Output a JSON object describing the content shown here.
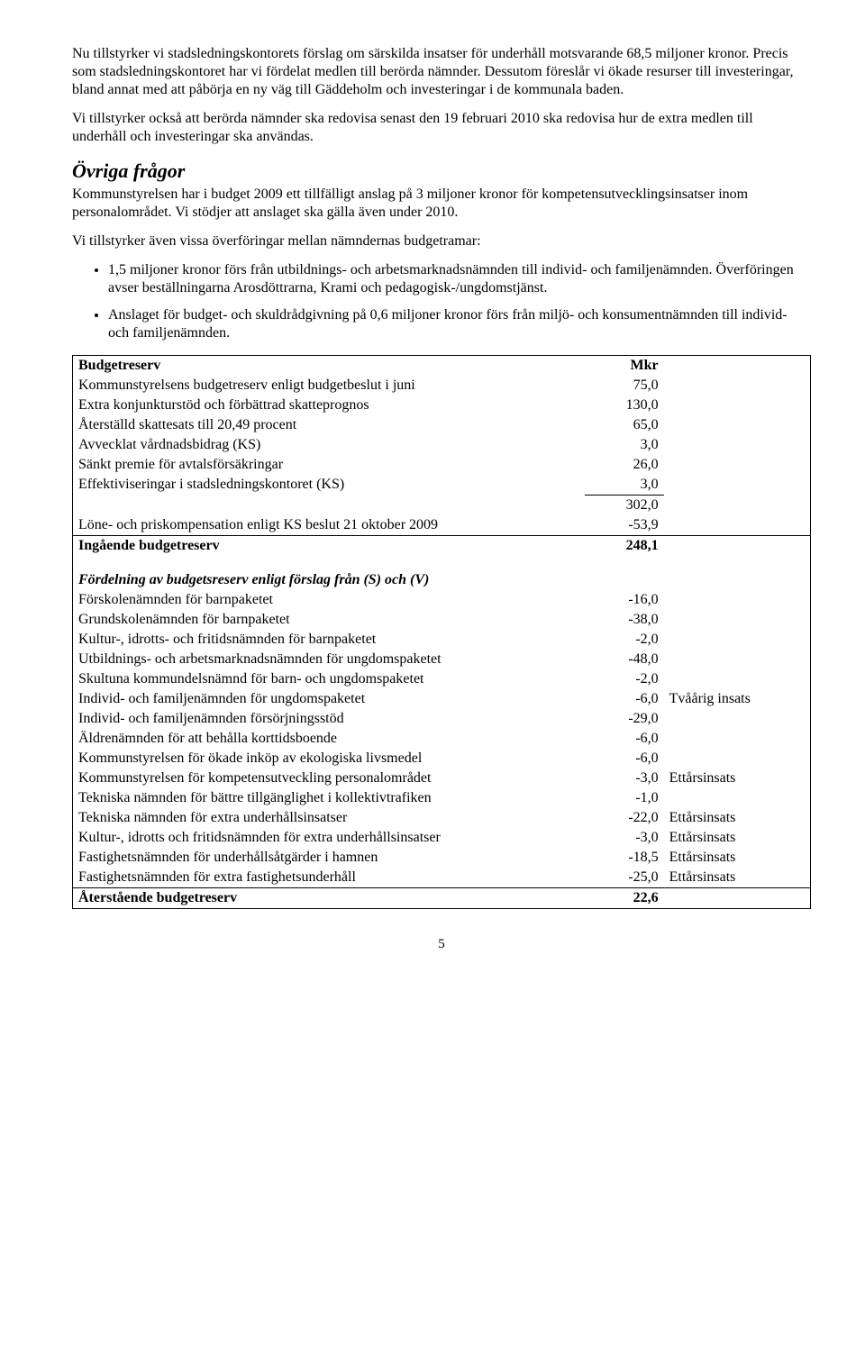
{
  "paragraphs": {
    "p1": "Nu tillstyrker vi stadsledningskontorets förslag om särskilda insatser för underhåll motsvarande 68,5 miljoner kronor. Precis som stadsledningskontoret har vi fördelat medlen till berörda nämnder. Dessutom föreslår vi ökade resurser till investeringar, bland annat med att påbörja en ny väg till Gäddeholm och investeringar i de kommunala baden.",
    "p2": "Vi tillstyrker också att berörda nämnder ska redovisa senast den 19 februari 2010 ska redovisa hur de extra medlen till underhåll och investeringar ska användas.",
    "heading": "Övriga frågor",
    "p3": "Kommunstyrelsen har i budget 2009 ett tillfälligt anslag på 3 miljoner kronor för kompetensutvecklingsinsatser inom personalområdet. Vi stödjer att anslaget ska gälla även under 2010.",
    "p4": "Vi tillstyrker även vissa överföringar mellan nämndernas budgetramar:",
    "b1": "1,5 miljoner kronor förs från utbildnings- och arbetsmarknadsnämnden till individ- och familjenämnden. Överföringen avser beställningarna Arosdöttrarna, Krami och pedagogisk-/ungdomstjänst.",
    "b2": "Anslaget för budget- och skuldrådgivning på 0,6 miljoner kronor förs från miljö- och konsumentnämnden till individ- och familjenämnden."
  },
  "table": {
    "header": {
      "label": "Budgetreserv",
      "unit": "Mkr"
    },
    "section1": [
      {
        "label": "Kommunstyrelsens budgetreserv enligt budgetbeslut i juni",
        "value": "75,0"
      },
      {
        "label": "Extra konjunkturstöd och förbättrad skatteprognos",
        "value": "130,0"
      },
      {
        "label": "Återställd skattesats till 20,49 procent",
        "value": "65,0"
      },
      {
        "label": "Avvecklat vårdnadsbidrag (KS)",
        "value": "3,0"
      },
      {
        "label": "Sänkt premie för avtalsförsäkringar",
        "value": "26,0"
      },
      {
        "label": "Effektiviseringar i stadsledningskontoret (KS)",
        "value": "3,0"
      }
    ],
    "subtotal1": {
      "label": "",
      "value": "302,0"
    },
    "row_lone": {
      "label": "Löne- och priskompensation enligt KS beslut 21 oktober 2009",
      "value": "-53,9"
    },
    "ingaende": {
      "label": "Ingående budgetreserv",
      "value": "248,1"
    },
    "section2_header": "Fördelning av budgetsreserv enligt förslag från (S) och (V)",
    "section2": [
      {
        "label": "Förskolenämnden för barnpaketet",
        "value": "-16,0",
        "note": ""
      },
      {
        "label": "Grundskolenämnden för barnpaketet",
        "value": "-38,0",
        "note": ""
      },
      {
        "label": "Kultur-, idrotts- och fritidsnämnden för barnpaketet",
        "value": "-2,0",
        "note": ""
      },
      {
        "label": "Utbildnings- och arbetsmarknadsnämnden för ungdomspaketet",
        "value": "-48,0",
        "note": ""
      },
      {
        "label": "Skultuna kommundelsnämnd för barn- och ungdomspaketet",
        "value": "-2,0",
        "note": ""
      },
      {
        "label": "Individ- och familjenämnden för ungdomspaketet",
        "value": "-6,0",
        "note": "Tvåårig insats"
      },
      {
        "label": "Individ- och familjenämnden försörjningsstöd",
        "value": "-29,0",
        "note": ""
      },
      {
        "label": "Äldrenämnden för att behålla korttidsboende",
        "value": "-6,0",
        "note": ""
      },
      {
        "label": "Kommunstyrelsen för ökade inköp av ekologiska livsmedel",
        "value": "-6,0",
        "note": ""
      },
      {
        "label": "Kommunstyrelsen för kompetensutveckling personalområdet",
        "value": "-3,0",
        "note": "Ettårsinsats"
      },
      {
        "label": "Tekniska nämnden för bättre tillgänglighet i kollektivtrafiken",
        "value": "-1,0",
        "note": ""
      },
      {
        "label": "Tekniska nämnden för extra underhållsinsatser",
        "value": "-22,0",
        "note": "Ettårsinsats"
      },
      {
        "label": "Kultur-, idrotts och fritidsnämnden för extra underhållsinsatser",
        "value": "-3,0",
        "note": "Ettårsinsats"
      },
      {
        "label": "Fastighetsnämnden för underhållsåtgärder i hamnen",
        "value": "-18,5",
        "note": "Ettårsinsats"
      },
      {
        "label": "Fastighetsnämnden för extra fastighetsunderhåll",
        "value": "-25,0",
        "note": "Ettårsinsats"
      }
    ],
    "ater": {
      "label": "Återstående budgetreserv",
      "value": "22,6"
    }
  },
  "pagenum": "5"
}
